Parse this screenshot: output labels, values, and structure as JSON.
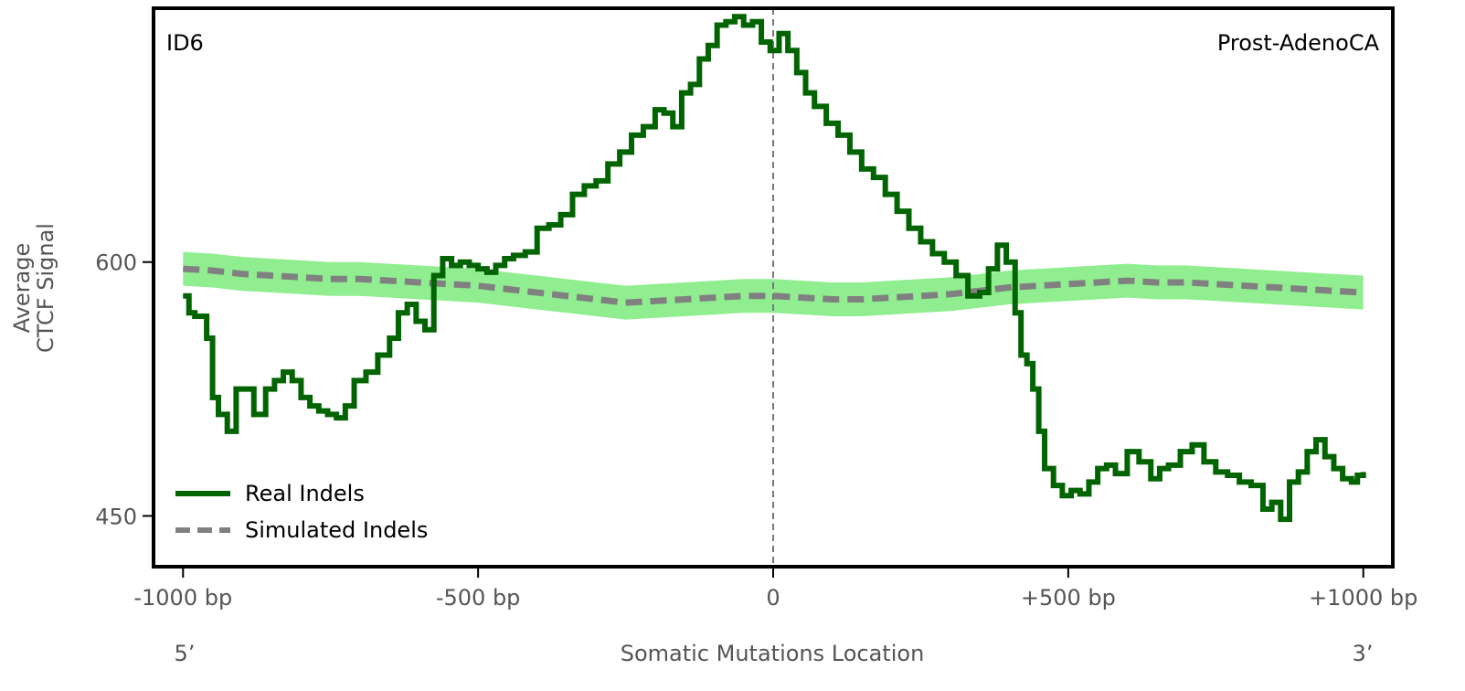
{
  "chart_data": {
    "type": "line",
    "panel_label": "ID6",
    "cancer_type": "Prost-AdenoCA",
    "xlabel": "Somatic Mutations Location",
    "ylabel_line1": "Average",
    "ylabel_line2": "CTCF Signal",
    "five_prime": "5’",
    "three_prime": "3’",
    "xlim": [
      -1050,
      1050
    ],
    "ylim": [
      420,
      750
    ],
    "x_ticks": [
      {
        "value": -1000,
        "label": "-1000 bp"
      },
      {
        "value": -500,
        "label": "-500 bp"
      },
      {
        "value": 0,
        "label": "0"
      },
      {
        "value": 500,
        "label": "+500 bp"
      },
      {
        "value": 1000,
        "label": "+1000 bp"
      }
    ],
    "y_ticks": [
      {
        "value": 450,
        "label": "450"
      },
      {
        "value": 600,
        "label": "600"
      }
    ],
    "center_line_x": 0,
    "legend_position": "lower-left",
    "series": [
      {
        "name": "Real Indels",
        "color": "#006400",
        "style": "solid",
        "x": [
          -1000,
          -990,
          -980,
          -960,
          -950,
          -940,
          -925,
          -910,
          -895,
          -880,
          -860,
          -845,
          -830,
          -815,
          -800,
          -785,
          -770,
          -755,
          -740,
          -725,
          -710,
          -690,
          -670,
          -650,
          -635,
          -620,
          -605,
          -590,
          -575,
          -560,
          -545,
          -530,
          -515,
          -500,
          -485,
          -470,
          -455,
          -440,
          -420,
          -400,
          -380,
          -360,
          -340,
          -320,
          -300,
          -280,
          -260,
          -240,
          -220,
          -200,
          -185,
          -170,
          -155,
          -140,
          -125,
          -110,
          -95,
          -80,
          -65,
          -50,
          -35,
          -20,
          -5,
          10,
          25,
          40,
          55,
          70,
          90,
          110,
          130,
          150,
          170,
          190,
          210,
          230,
          250,
          270,
          290,
          310,
          330,
          350,
          365,
          380,
          395,
          410,
          420,
          430,
          440,
          450,
          460,
          475,
          490,
          505,
          520,
          535,
          550,
          565,
          580,
          600,
          620,
          640,
          655,
          670,
          690,
          710,
          730,
          750,
          770,
          790,
          810,
          830,
          845,
          860,
          875,
          890,
          905,
          920,
          935,
          950,
          965,
          980,
          990,
          1000
        ],
        "y": [
          580,
          570,
          568,
          555,
          520,
          510,
          500,
          525,
          525,
          510,
          525,
          530,
          535,
          530,
          520,
          515,
          512,
          510,
          508,
          515,
          530,
          535,
          545,
          555,
          570,
          575,
          565,
          560,
          592,
          602,
          598,
          600,
          598,
          596,
          594,
          598,
          602,
          604,
          606,
          620,
          622,
          628,
          640,
          645,
          648,
          658,
          665,
          675,
          680,
          690,
          688,
          680,
          700,
          705,
          720,
          728,
          740,
          742,
          745,
          740,
          742,
          730,
          725,
          735,
          725,
          712,
          700,
          692,
          682,
          675,
          665,
          655,
          650,
          640,
          630,
          620,
          612,
          605,
          600,
          592,
          580,
          582,
          596,
          610,
          600,
          570,
          545,
          540,
          525,
          500,
          478,
          468,
          462,
          465,
          463,
          470,
          478,
          480,
          475,
          488,
          482,
          472,
          478,
          480,
          488,
          492,
          482,
          476,
          474,
          470,
          468,
          454,
          458,
          448,
          470,
          476,
          488,
          495,
          485,
          478,
          472,
          470,
          474,
          476
        ]
      },
      {
        "name": "Simulated Indels",
        "color": "#808080",
        "style": "dashed",
        "band_color": "#90EE90",
        "band_halfwidth": 10,
        "x": [
          -1000,
          -950,
          -900,
          -850,
          -800,
          -750,
          -700,
          -650,
          -600,
          -550,
          -500,
          -450,
          -400,
          -350,
          -300,
          -250,
          -200,
          -150,
          -100,
          -50,
          0,
          50,
          100,
          150,
          200,
          250,
          300,
          350,
          400,
          450,
          500,
          550,
          600,
          650,
          700,
          750,
          800,
          850,
          900,
          950,
          1000
        ],
        "y": [
          596,
          595,
          593,
          592,
          591,
          590,
          590,
          589,
          588,
          587,
          586,
          584,
          582,
          580,
          578,
          576,
          577,
          578,
          579,
          580,
          580,
          579,
          578,
          578,
          579,
          580,
          581,
          583,
          585,
          586,
          587,
          588,
          589,
          588,
          588,
          587,
          586,
          585,
          584,
          583,
          582
        ]
      }
    ]
  }
}
